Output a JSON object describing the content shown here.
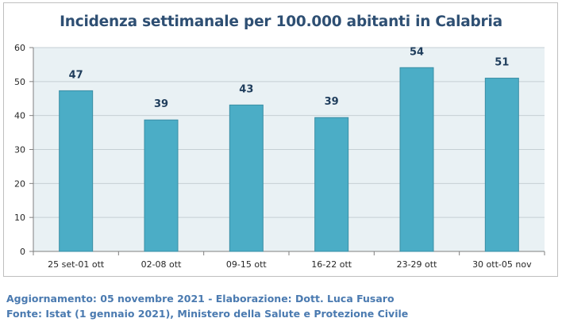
{
  "chart_data": {
    "type": "bar",
    "title": "Incidenza settimanale per 100.000 abitanti in Calabria",
    "xlabel": "",
    "ylabel": "",
    "categories": [
      "25 set-01 ott",
      "02-08 ott",
      "09-15 ott",
      "16-22 ott",
      "23-29 ott",
      "30 ott-05 nov"
    ],
    "series": [
      {
        "values": [
          47.3,
          38.7,
          43.1,
          39.4,
          54.1,
          51.0
        ]
      }
    ],
    "data_labels": [
      "47",
      "39",
      "43",
      "39",
      "54",
      "51"
    ],
    "ylim": [
      0,
      60
    ],
    "yticks": [
      0,
      10,
      20,
      30,
      40,
      50,
      60
    ],
    "grid": "horizontal",
    "legend": "none",
    "colors": {
      "bar_fill": "#4badc6",
      "bar_stroke": "#3a8ea5",
      "plot_background": "#e9f1f4",
      "gridline": "#c5cfd4",
      "title": "#2e4f73",
      "data_label": "#1f3d5c",
      "footer": "#4a7ab0"
    }
  },
  "footer": {
    "line1": "Aggiornamento: 05 novembre 2021 - Elaborazione: Dott. Luca Fusaro",
    "line2": "Fonte: Istat (1 gennaio 2021), Ministero della Salute e Protezione Civile"
  }
}
